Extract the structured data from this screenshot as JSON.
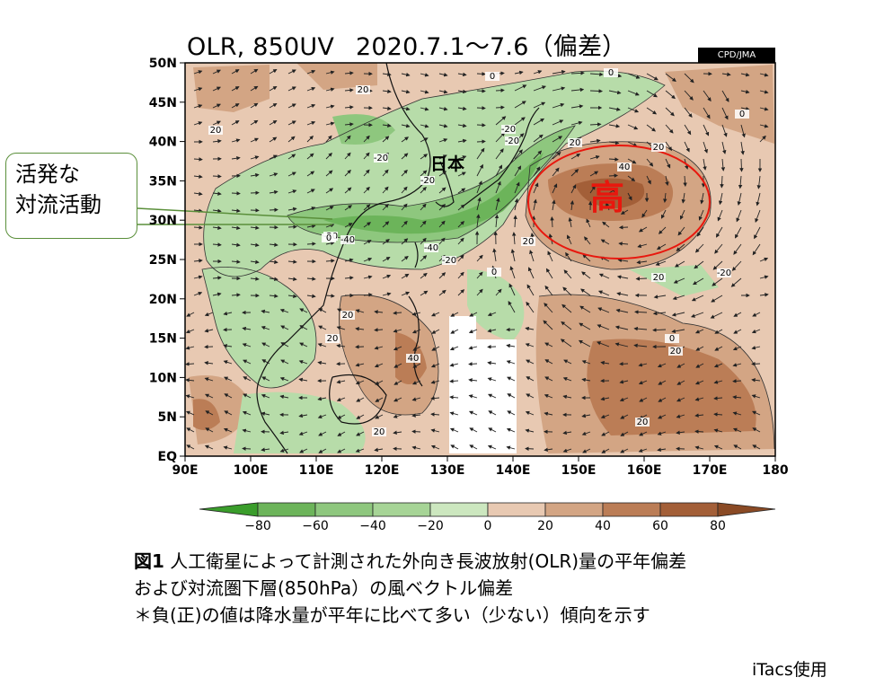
{
  "figure": {
    "title_left": "OLR, 850UV",
    "title_right": "2020.7.1～7.6（偏差）",
    "credit": "CPD/JMA"
  },
  "map": {
    "lat_labels": [
      "50N",
      "45N",
      "40N",
      "35N",
      "30N",
      "25N",
      "20N",
      "15N",
      "10N",
      "5N",
      "EQ"
    ],
    "lon_labels": [
      "90E",
      "100E",
      "110E",
      "120E",
      "130E",
      "140E",
      "150E",
      "160E",
      "170E",
      "180"
    ],
    "japan_label": "日本",
    "high_label": "高",
    "contour_labels": [
      "0",
      "20",
      "20",
      "0",
      "-20",
      "-20",
      "-20",
      "-40",
      "-20",
      "-20",
      "-40",
      "-20",
      "0",
      "20",
      "40",
      "20",
      "0",
      "-20",
      "20",
      "20",
      "20",
      "40",
      "20",
      "0",
      "20",
      "20",
      "20",
      "0"
    ],
    "colors": {
      "neg80": "#3a9d2b",
      "neg60": "#6cb45a",
      "neg40": "#8ec77e",
      "neg20": "#b7dca9",
      "pos0": "#e8c9b2",
      "pos20": "#d3a584",
      "pos40": "#bb7d56",
      "pos60": "#a35f38",
      "high_circle": "#e8170e"
    }
  },
  "callout": {
    "line1": "活発な",
    "line2": "対流活動"
  },
  "colorbar": {
    "labels": [
      "−80",
      "−60",
      "−40",
      "−20",
      "0",
      "20",
      "40",
      "60",
      "80"
    ]
  },
  "caption": {
    "fig_no": "図1",
    "line1": "人工衛星によって計測された外向き長波放射(OLR)量の平年偏差",
    "line2": "および対流圏下層(850hPa）の風ベクトル偏差",
    "line3": "＊負(正)の値は降水量が平年に比べて多い（少ない）傾向を示す"
  },
  "footer": "iTacs使用"
}
